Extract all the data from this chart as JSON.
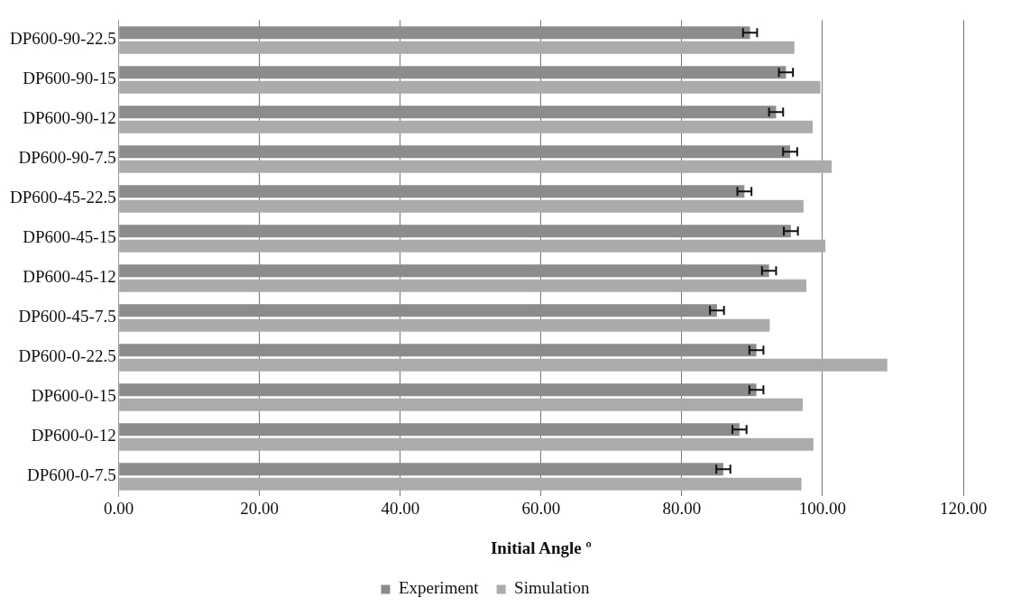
{
  "chart_data": {
    "type": "bar",
    "orientation": "horizontal",
    "xlabel": "Initial Angle º",
    "categories": [
      "DP600-90-22.5",
      "DP600-90-15",
      "DP600-90-12",
      "DP600-90-7.5",
      "DP600-45-22.5",
      "DP600-45-15",
      "DP600-45-12",
      "DP600-45-7.5",
      "DP600-0-22.5",
      "DP600-0-15",
      "DP600-0-12",
      "DP600-0-7.5"
    ],
    "series": [
      {
        "name": "Experiment",
        "color": "#8c8c8c",
        "values": [
          89.7,
          94.8,
          93.4,
          95.4,
          88.9,
          95.5,
          92.4,
          85,
          90.6,
          90.6,
          88.2,
          85.9
        ],
        "errors": [
          1,
          1,
          1,
          1,
          1,
          1,
          1,
          1,
          1,
          1,
          1,
          1
        ]
      },
      {
        "name": "Simulation",
        "color": "#ababab",
        "values": [
          96,
          99.7,
          98.6,
          101.3,
          97.3,
          100.4,
          97.7,
          92.5,
          109.2,
          97.2,
          98.7,
          97
        ]
      }
    ],
    "xlim": [
      0,
      120
    ],
    "xticks": [
      {
        "value": 0,
        "label": "0.00"
      },
      {
        "value": 20,
        "label": "20.00"
      },
      {
        "value": 40,
        "label": "40.00"
      },
      {
        "value": 60,
        "label": "60.00"
      },
      {
        "value": 80,
        "label": "80.00"
      },
      {
        "value": 100,
        "label": "100.00"
      },
      {
        "value": 120,
        "label": "120.00"
      }
    ],
    "grid": "x",
    "legend": "bottom"
  }
}
